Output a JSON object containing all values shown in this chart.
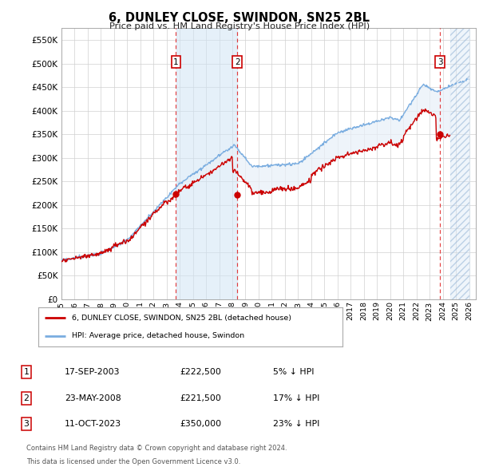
{
  "title": "6, DUNLEY CLOSE, SWINDON, SN25 2BL",
  "subtitle": "Price paid vs. HM Land Registry's House Price Index (HPI)",
  "yticks": [
    0,
    50000,
    100000,
    150000,
    200000,
    250000,
    300000,
    350000,
    400000,
    450000,
    500000,
    550000
  ],
  "ytick_labels": [
    "£0",
    "£50K",
    "£100K",
    "£150K",
    "£200K",
    "£250K",
    "£300K",
    "£350K",
    "£400K",
    "£450K",
    "£500K",
    "£550K"
  ],
  "xlim_start": 1995.0,
  "xlim_end": 2026.5,
  "ylim_min": 0,
  "ylim_max": 575000,
  "sale_dates": [
    2003.72,
    2008.39,
    2023.78
  ],
  "sale_prices": [
    222500,
    221500,
    350000
  ],
  "sale_labels": [
    "1",
    "2",
    "3"
  ],
  "sale_pct_below": [
    "5%",
    "17%",
    "23%"
  ],
  "sale_dates_str": [
    "17-SEP-2003",
    "23-MAY-2008",
    "11-OCT-2023"
  ],
  "sale_prices_str": [
    "£222,500",
    "£221,500",
    "£350,000"
  ],
  "red_line_color": "#cc0000",
  "blue_line_color": "#7aade0",
  "shade_color_between_sales": "#d8e8f5",
  "shade_color_general": "#e8f0f8",
  "future_hatch_color": "#b0c8e0",
  "current_year": 2024.58,
  "legend_label_red": "6, DUNLEY CLOSE, SWINDON, SN25 2BL (detached house)",
  "legend_label_blue": "HPI: Average price, detached house, Swindon",
  "footnote1": "Contains HM Land Registry data © Crown copyright and database right 2024.",
  "footnote2": "This data is licensed under the Open Government Licence v3.0.",
  "background_color": "#ffffff",
  "plot_bg_color": "#ffffff",
  "grid_color": "#d0d0d0",
  "xtick_years": [
    1995,
    1996,
    1997,
    1998,
    1999,
    2000,
    2001,
    2002,
    2003,
    2004,
    2005,
    2006,
    2007,
    2008,
    2009,
    2010,
    2011,
    2012,
    2013,
    2014,
    2015,
    2016,
    2017,
    2018,
    2019,
    2020,
    2021,
    2022,
    2023,
    2024,
    2025,
    2026
  ]
}
